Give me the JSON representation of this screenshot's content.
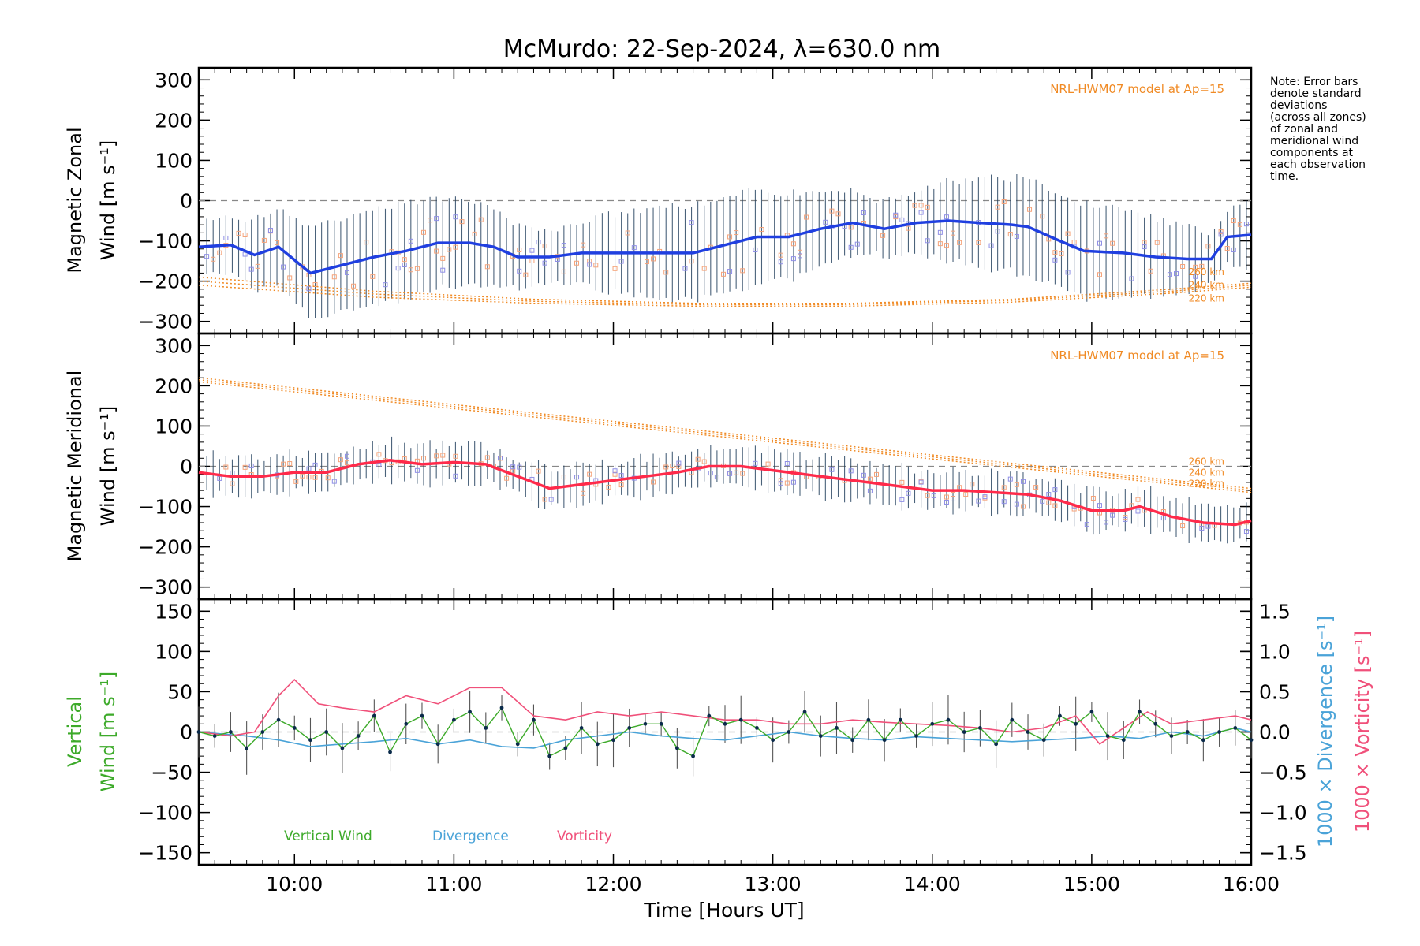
{
  "chart_data": [
    {
      "type": "line",
      "panel": "zonal",
      "title": "McMurdo: 22-Sep-2024, λ=630.0 nm",
      "ylabel_line1": "Magnetic Zonal",
      "ylabel_line2": "Wind [m s⁻¹]",
      "ylim": [
        -330,
        330
      ],
      "yticks": [
        -300,
        -200,
        -100,
        0,
        100,
        200,
        300
      ],
      "model_label": "NRL-HWM07 model at Ap=15",
      "alt_labels": [
        "260 km",
        "240 km",
        "220 km"
      ],
      "colors": {
        "mean": "#1f3fe0",
        "model": "#f08a24",
        "errorbar": "#1d3b5a",
        "zone_a": "#f5a37a",
        "zone_b": "#8f8fe6"
      },
      "series": [
        {
          "name": "mean",
          "x": [
            9.4,
            9.6,
            9.75,
            9.9,
            10.1,
            10.3,
            10.5,
            10.7,
            10.9,
            11.1,
            11.25,
            11.4,
            11.6,
            11.8,
            12.0,
            12.2,
            12.5,
            12.7,
            12.9,
            13.1,
            13.3,
            13.5,
            13.7,
            13.9,
            14.1,
            14.3,
            14.5,
            14.6,
            14.8,
            14.95,
            15.2,
            15.4,
            15.6,
            15.75,
            15.85,
            16.0
          ],
          "y": [
            -115,
            -110,
            -135,
            -115,
            -180,
            -160,
            -140,
            -125,
            -105,
            -105,
            -115,
            -140,
            -140,
            -130,
            -130,
            -130,
            -130,
            -110,
            -90,
            -90,
            -70,
            -55,
            -70,
            -55,
            -50,
            -55,
            -60,
            -65,
            -100,
            -125,
            -130,
            -140,
            -145,
            -145,
            -90,
            -85
          ]
        },
        {
          "name": "model_260",
          "x": [
            9.4,
            10.5,
            11.5,
            12.5,
            13.5,
            14.5,
            15.5,
            16.0
          ],
          "y": [
            -190,
            -225,
            -245,
            -255,
            -255,
            -245,
            -220,
            -205
          ]
        },
        {
          "name": "model_240",
          "x": [
            9.4,
            10.5,
            11.5,
            12.5,
            13.5,
            14.5,
            15.5,
            16.0
          ],
          "y": [
            -200,
            -232,
            -250,
            -258,
            -258,
            -248,
            -225,
            -210
          ]
        },
        {
          "name": "model_220",
          "x": [
            9.4,
            10.5,
            11.5,
            12.5,
            13.5,
            14.5,
            15.5,
            16.0
          ],
          "y": [
            -210,
            -240,
            -255,
            -262,
            -262,
            -252,
            -230,
            -215
          ]
        }
      ]
    },
    {
      "type": "line",
      "panel": "meridional",
      "ylabel_line1": "Magnetic Meridional",
      "ylabel_line2": "Wind [m s⁻¹]",
      "ylim": [
        -330,
        330
      ],
      "yticks": [
        -300,
        -200,
        -100,
        0,
        100,
        200,
        300
      ],
      "model_label": "NRL-HWM07 model at Ap=15",
      "alt_labels": [
        "260 km",
        "240 km",
        "220 km"
      ],
      "colors": {
        "mean": "#ff2a4a",
        "model": "#f08a24",
        "errorbar": "#1d3b5a",
        "zone_a": "#f5a37a",
        "zone_b": "#8f8fe6"
      },
      "series": [
        {
          "name": "mean",
          "x": [
            9.4,
            9.6,
            9.8,
            10.0,
            10.2,
            10.4,
            10.6,
            10.8,
            11.0,
            11.2,
            11.4,
            11.6,
            11.8,
            12.0,
            12.2,
            12.4,
            12.6,
            12.8,
            13.0,
            13.2,
            13.4,
            13.6,
            13.8,
            14.0,
            14.2,
            14.4,
            14.6,
            14.8,
            15.0,
            15.2,
            15.3,
            15.5,
            15.7,
            15.9,
            16.0
          ],
          "y": [
            -15,
            -25,
            -25,
            -15,
            -15,
            5,
            15,
            5,
            10,
            5,
            -25,
            -55,
            -45,
            -35,
            -25,
            -15,
            0,
            0,
            -10,
            -20,
            -30,
            -40,
            -50,
            -60,
            -60,
            -65,
            -70,
            -85,
            -110,
            -110,
            -100,
            -125,
            -140,
            -145,
            -135
          ]
        },
        {
          "name": "model_260",
          "x": [
            9.4,
            16.0
          ],
          "y": [
            220,
            -55
          ]
        },
        {
          "name": "model_240",
          "x": [
            9.4,
            16.0
          ],
          "y": [
            215,
            -60
          ]
        },
        {
          "name": "model_220",
          "x": [
            9.4,
            16.0
          ],
          "y": [
            210,
            -65
          ]
        }
      ]
    },
    {
      "type": "line",
      "panel": "vertical",
      "ylabel_line1": "Vertical",
      "ylabel_line2": "Wind [m s⁻¹]",
      "ylim": [
        -165,
        165
      ],
      "yticks": [
        -150,
        -100,
        -50,
        0,
        50,
        100,
        150
      ],
      "right_axis_divergence": "1000 × Divergence [s⁻¹]",
      "right_axis_vorticity": "1000 × Vorticity [s⁻¹]",
      "right_ylim": [
        -1.65,
        1.65
      ],
      "right_yticks": [
        -1.5,
        -1.0,
        -0.5,
        0.0,
        0.5,
        1.0,
        1.5
      ],
      "right_ytick_labels": [
        "−1.5",
        "−1.0",
        "−0.5",
        "0.0",
        "0.5",
        "1.0",
        "1.5"
      ],
      "legend": [
        "Vertical Wind",
        "Divergence",
        "Vorticity"
      ],
      "colors": {
        "vertical": "#3daa2a",
        "divergence": "#4aa3d8",
        "vorticity": "#f0507a",
        "errorbar": "#555555",
        "point": "#0a2a4a"
      },
      "series": [
        {
          "name": "Vertical Wind",
          "x": [
            9.4,
            9.5,
            9.6,
            9.7,
            9.8,
            9.9,
            10.0,
            10.1,
            10.2,
            10.3,
            10.4,
            10.5,
            10.6,
            10.7,
            10.8,
            10.9,
            11.0,
            11.1,
            11.2,
            11.3,
            11.4,
            11.5,
            11.6,
            11.7,
            11.8,
            11.9,
            12.0,
            12.1,
            12.2,
            12.3,
            12.4,
            12.5,
            12.6,
            12.7,
            12.8,
            12.9,
            13.0,
            13.1,
            13.2,
            13.3,
            13.4,
            13.5,
            13.6,
            13.7,
            13.8,
            13.9,
            14.0,
            14.1,
            14.2,
            14.3,
            14.4,
            14.5,
            14.6,
            14.7,
            14.8,
            14.9,
            15.0,
            15.1,
            15.2,
            15.3,
            15.4,
            15.5,
            15.6,
            15.7,
            15.8,
            15.9,
            16.0
          ],
          "y": [
            0,
            -5,
            0,
            -20,
            0,
            15,
            5,
            -10,
            0,
            -20,
            -5,
            20,
            -25,
            10,
            20,
            -15,
            15,
            25,
            5,
            30,
            -15,
            15,
            -30,
            -20,
            5,
            -15,
            -10,
            5,
            10,
            10,
            -20,
            -30,
            20,
            10,
            15,
            5,
            -10,
            0,
            25,
            -5,
            5,
            -10,
            15,
            -10,
            15,
            -5,
            10,
            15,
            0,
            5,
            -15,
            15,
            0,
            -10,
            20,
            10,
            25,
            -5,
            -10,
            25,
            10,
            -5,
            0,
            -10,
            0,
            5,
            -10
          ]
        },
        {
          "name": "Divergence",
          "x": [
            9.4,
            9.7,
            9.9,
            10.1,
            10.3,
            10.5,
            10.7,
            10.9,
            11.1,
            11.3,
            11.5,
            11.7,
            11.9,
            12.1,
            12.3,
            12.5,
            12.7,
            12.9,
            13.1,
            13.3,
            13.5,
            13.7,
            13.9,
            14.1,
            14.3,
            14.5,
            14.7,
            14.9,
            15.1,
            15.3,
            15.5,
            15.7,
            15.9,
            16.0
          ],
          "y": [
            0.0,
            -0.05,
            -0.1,
            -0.18,
            -0.15,
            -0.12,
            -0.08,
            -0.15,
            -0.1,
            -0.18,
            -0.2,
            -0.1,
            -0.05,
            0.0,
            -0.05,
            -0.08,
            -0.1,
            -0.05,
            0.0,
            -0.05,
            -0.08,
            -0.1,
            -0.06,
            -0.08,
            -0.1,
            -0.12,
            -0.1,
            -0.08,
            -0.05,
            -0.08,
            0.0,
            -0.05,
            0.05,
            0.0
          ]
        },
        {
          "name": "Vorticity",
          "x": [
            9.4,
            9.6,
            9.75,
            9.9,
            10.0,
            10.15,
            10.3,
            10.5,
            10.7,
            10.9,
            11.1,
            11.3,
            11.5,
            11.7,
            11.9,
            12.1,
            12.3,
            12.5,
            12.7,
            12.9,
            13.1,
            13.3,
            13.5,
            13.7,
            13.9,
            14.1,
            14.3,
            14.5,
            14.7,
            14.9,
            15.05,
            15.2,
            15.35,
            15.5,
            15.7,
            15.9,
            16.0
          ],
          "y": [
            0.0,
            -0.05,
            0.0,
            0.45,
            0.65,
            0.35,
            0.3,
            0.25,
            0.45,
            0.35,
            0.55,
            0.55,
            0.2,
            0.15,
            0.25,
            0.2,
            0.25,
            0.2,
            0.15,
            0.15,
            0.1,
            0.1,
            0.15,
            0.12,
            0.1,
            0.08,
            0.05,
            0.0,
            0.05,
            0.2,
            -0.15,
            0.05,
            0.25,
            0.1,
            0.15,
            0.2,
            0.15
          ]
        }
      ]
    }
  ],
  "x_axis": {
    "xlim": [
      9.4,
      16.0
    ],
    "ticks": [
      10,
      11,
      12,
      13,
      14,
      15,
      16
    ],
    "tick_labels": [
      "10:00",
      "11:00",
      "12:00",
      "13:00",
      "14:00",
      "15:00",
      "16:00"
    ],
    "label": "Time [Hours UT]"
  },
  "note": [
    "Note: Error bars",
    "denote standard",
    "deviations",
    "(across all zones)",
    "of zonal and",
    "meridional wind",
    "components at",
    "each observation",
    "time."
  ]
}
